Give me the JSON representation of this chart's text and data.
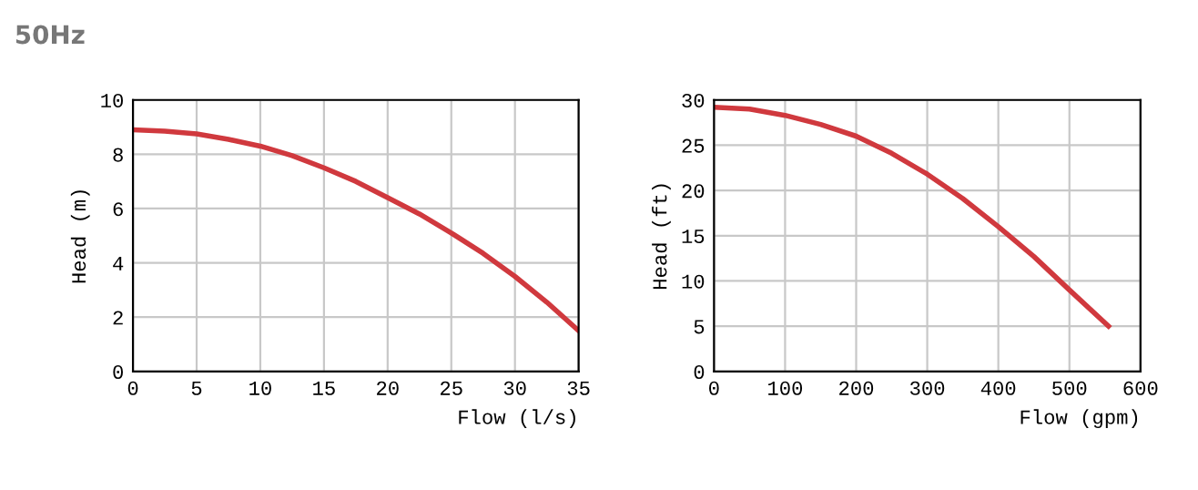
{
  "chart_data": [
    {
      "type": "line",
      "title": "50Hz",
      "xlabel": "Flow (l/s)",
      "ylabel": "Head (m)",
      "xlim": [
        0,
        35
      ],
      "ylim": [
        0,
        10
      ],
      "xticks": [
        0,
        5,
        10,
        15,
        20,
        25,
        30,
        35
      ],
      "yticks": [
        0,
        2,
        4,
        6,
        8,
        10
      ],
      "grid": true,
      "legend": false,
      "marker": "none",
      "line_style": "solid",
      "series": [
        {
          "color": "#d0393e",
          "x": [
            0,
            2.5,
            5,
            7.5,
            10,
            12.5,
            15,
            17.5,
            20,
            22.5,
            25,
            27.5,
            30,
            32.5,
            35
          ],
          "values": [
            8.9,
            8.85,
            8.75,
            8.55,
            8.3,
            7.95,
            7.5,
            7.0,
            6.4,
            5.8,
            5.1,
            4.35,
            3.5,
            2.55,
            1.5
          ]
        }
      ]
    },
    {
      "type": "line",
      "xlabel": "Flow (gpm)",
      "ylabel": "Head (ft)",
      "xlim": [
        0,
        600
      ],
      "ylim": [
        0,
        30
      ],
      "xticks": [
        0,
        100,
        200,
        300,
        400,
        500,
        600
      ],
      "yticks": [
        0,
        5,
        10,
        15,
        20,
        25,
        30
      ],
      "grid": true,
      "legend": false,
      "marker": "none",
      "line_style": "solid",
      "series": [
        {
          "color": "#d0393e",
          "x": [
            0,
            50,
            100,
            150,
            200,
            250,
            300,
            350,
            400,
            450,
            500,
            555
          ],
          "values": [
            29.2,
            29.0,
            28.3,
            27.3,
            26.0,
            24.1,
            21.8,
            19.1,
            16.0,
            12.7,
            9.0,
            5.0
          ]
        }
      ]
    }
  ]
}
